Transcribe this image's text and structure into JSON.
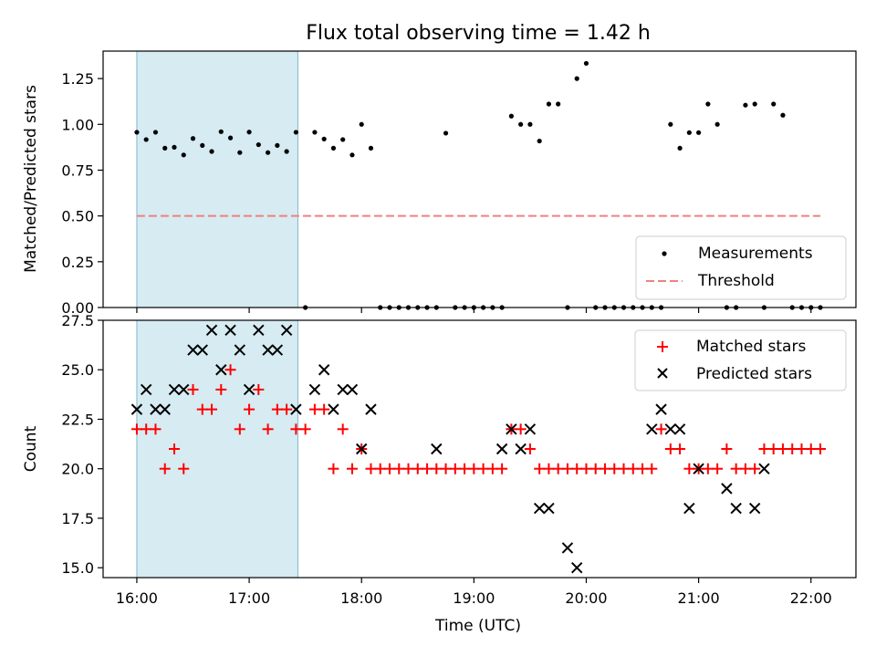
{
  "figure_title": "Flux total observing time = 1.42 h",
  "chart_data": [
    {
      "type": "scatter",
      "title": "Flux total observing time = 1.42 h",
      "xlabel": "",
      "ylabel": "Matched/Predicted stars",
      "ylim": [
        0.0,
        1.4
      ],
      "yticks": [
        "0.00",
        "0.25",
        "0.50",
        "0.75",
        "1.00",
        "1.25"
      ],
      "ytick_values": [
        0.0,
        0.25,
        0.5,
        0.75,
        1.0,
        1.25
      ],
      "shaded_region": {
        "x_start": "16:00",
        "x_end": "17:26",
        "color": "#add8e6"
      },
      "legend": {
        "placement": "lower right",
        "entries": [
          "Measurements",
          "Threshold"
        ]
      },
      "series": [
        {
          "name": "Measurements",
          "marker": "dot",
          "color": "#000000",
          "x": [
            "16:00",
            "16:05",
            "16:10",
            "16:15",
            "16:20",
            "16:25",
            "16:30",
            "16:35",
            "16:40",
            "16:45",
            "16:50",
            "16:55",
            "17:00",
            "17:05",
            "17:10",
            "17:15",
            "17:20",
            "17:25",
            "17:30",
            "17:35",
            "17:40",
            "17:45",
            "17:50",
            "17:55",
            "18:00",
            "18:05",
            "18:10",
            "18:15",
            "18:20",
            "18:25",
            "18:30",
            "18:35",
            "18:40",
            "18:45",
            "18:50",
            "18:55",
            "19:00",
            "19:05",
            "19:10",
            "19:15",
            "19:20",
            "19:25",
            "19:30",
            "19:35",
            "19:40",
            "19:45",
            "19:50",
            "19:55",
            "20:00",
            "20:05",
            "20:10",
            "20:15",
            "20:20",
            "20:25",
            "20:30",
            "20:35",
            "20:40",
            "20:45",
            "20:50",
            "20:55",
            "21:00",
            "21:05",
            "21:10",
            "21:15",
            "21:20",
            "21:25",
            "21:30",
            "21:35",
            "21:40",
            "21:45",
            "21:50",
            "21:55",
            "22:00",
            "22:05"
          ],
          "y": [
            0.957,
            0.917,
            0.957,
            0.87,
            0.875,
            0.833,
            0.923,
            0.885,
            0.852,
            0.96,
            0.926,
            0.846,
            0.958,
            0.889,
            0.846,
            0.885,
            0.852,
            0.957,
            0,
            0.957,
            0.92,
            0.87,
            0.917,
            0.833,
            1.0,
            0.87,
            0,
            0,
            0,
            0,
            0,
            0,
            0,
            0.952,
            0,
            0,
            0,
            0,
            0,
            0,
            1.045,
            1.0,
            1.0,
            0.909,
            1.111,
            1.111,
            0,
            1.25,
            1.333,
            0,
            0,
            0,
            0,
            0,
            0,
            0,
            0,
            1.0,
            0.87,
            0.955,
            0.955,
            1.111,
            1.0,
            0,
            0,
            1.105,
            1.111,
            0,
            1.111,
            1.05,
            0,
            0,
            0,
            0
          ]
        },
        {
          "name": "Threshold",
          "style": "dashed",
          "color": "#f08080",
          "x": [
            "16:00",
            "22:05"
          ],
          "y": [
            0.5,
            0.5
          ]
        }
      ]
    },
    {
      "type": "scatter",
      "xlabel": "Time (UTC)",
      "ylabel": "Count",
      "ylim": [
        14.5,
        27.5
      ],
      "yticks": [
        "15.0",
        "17.5",
        "20.0",
        "22.5",
        "25.0",
        "27.5"
      ],
      "ytick_values": [
        15.0,
        17.5,
        20.0,
        22.5,
        25.0,
        27.5
      ],
      "xlim": [
        "15:42",
        "22:24"
      ],
      "xticks": [
        "16:00",
        "17:00",
        "18:00",
        "19:00",
        "20:00",
        "21:00",
        "22:00"
      ],
      "shaded_region": {
        "x_start": "16:00",
        "x_end": "17:26",
        "color": "#add8e6"
      },
      "legend": {
        "placement": "upper right",
        "entries": [
          "Matched stars",
          "Predicted stars"
        ]
      },
      "series": [
        {
          "name": "Matched stars",
          "marker": "plus",
          "color": "#ff0000",
          "x": [
            "16:00",
            "16:05",
            "16:10",
            "16:15",
            "16:20",
            "16:25",
            "16:30",
            "16:35",
            "16:40",
            "16:45",
            "16:50",
            "16:55",
            "17:00",
            "17:05",
            "17:10",
            "17:15",
            "17:20",
            "17:25",
            "17:30",
            "17:35",
            "17:40",
            "17:45",
            "17:50",
            "17:55",
            "18:00",
            "18:05",
            "18:10",
            "18:15",
            "18:20",
            "18:25",
            "18:30",
            "18:35",
            "18:40",
            "18:45",
            "18:50",
            "18:55",
            "19:00",
            "19:05",
            "19:10",
            "19:15",
            "19:20",
            "19:25",
            "19:30",
            "19:35",
            "19:40",
            "19:45",
            "19:50",
            "19:55",
            "20:00",
            "20:05",
            "20:10",
            "20:15",
            "20:20",
            "20:25",
            "20:30",
            "20:35",
            "20:40",
            "20:45",
            "20:50",
            "20:55",
            "21:00",
            "21:05",
            "21:10",
            "21:15",
            "21:20",
            "21:25",
            "21:30",
            "21:35",
            "21:40",
            "21:45",
            "21:50",
            "21:55",
            "22:00",
            "22:05"
          ],
          "y": [
            22,
            22,
            22,
            20,
            21,
            20,
            24,
            23,
            23,
            24,
            25,
            22,
            23,
            24,
            22,
            23,
            23,
            22,
            22,
            23,
            23,
            20,
            22,
            20,
            21,
            20,
            20,
            20,
            20,
            20,
            20,
            20,
            20,
            20,
            20,
            20,
            20,
            20,
            20,
            20,
            22,
            22,
            21,
            20,
            20,
            20,
            20,
            20,
            20,
            20,
            20,
            20,
            20,
            20,
            20,
            20,
            22,
            21,
            21,
            20,
            20,
            20,
            20,
            21,
            20,
            20,
            20,
            21,
            21,
            21,
            21,
            21,
            21,
            21
          ]
        },
        {
          "name": "Predicted stars",
          "marker": "x",
          "color": "#000000",
          "x": [
            "16:00",
            "16:05",
            "16:10",
            "16:15",
            "16:20",
            "16:25",
            "16:30",
            "16:35",
            "16:40",
            "16:45",
            "16:50",
            "16:55",
            "17:00",
            "17:05",
            "17:10",
            "17:15",
            "17:20",
            "17:25",
            "17:35",
            "17:40",
            "17:45",
            "17:50",
            "17:55",
            "18:00",
            "18:05",
            "18:40",
            "19:15",
            "19:20",
            "19:25",
            "19:30",
            "19:35",
            "19:40",
            "19:50",
            "19:55",
            "20:35",
            "20:40",
            "20:45",
            "20:50",
            "20:55",
            "21:00",
            "21:15",
            "21:20",
            "21:30",
            "21:35"
          ],
          "y": [
            23,
            24,
            23,
            23,
            24,
            24,
            26,
            26,
            27,
            25,
            27,
            26,
            24,
            27,
            26,
            26,
            27,
            23,
            24,
            25,
            23,
            24,
            24,
            21,
            23,
            21,
            21,
            22,
            21,
            22,
            18,
            18,
            16,
            15,
            22,
            23,
            22,
            22,
            18,
            20,
            19,
            18,
            18,
            20
          ]
        }
      ]
    }
  ]
}
